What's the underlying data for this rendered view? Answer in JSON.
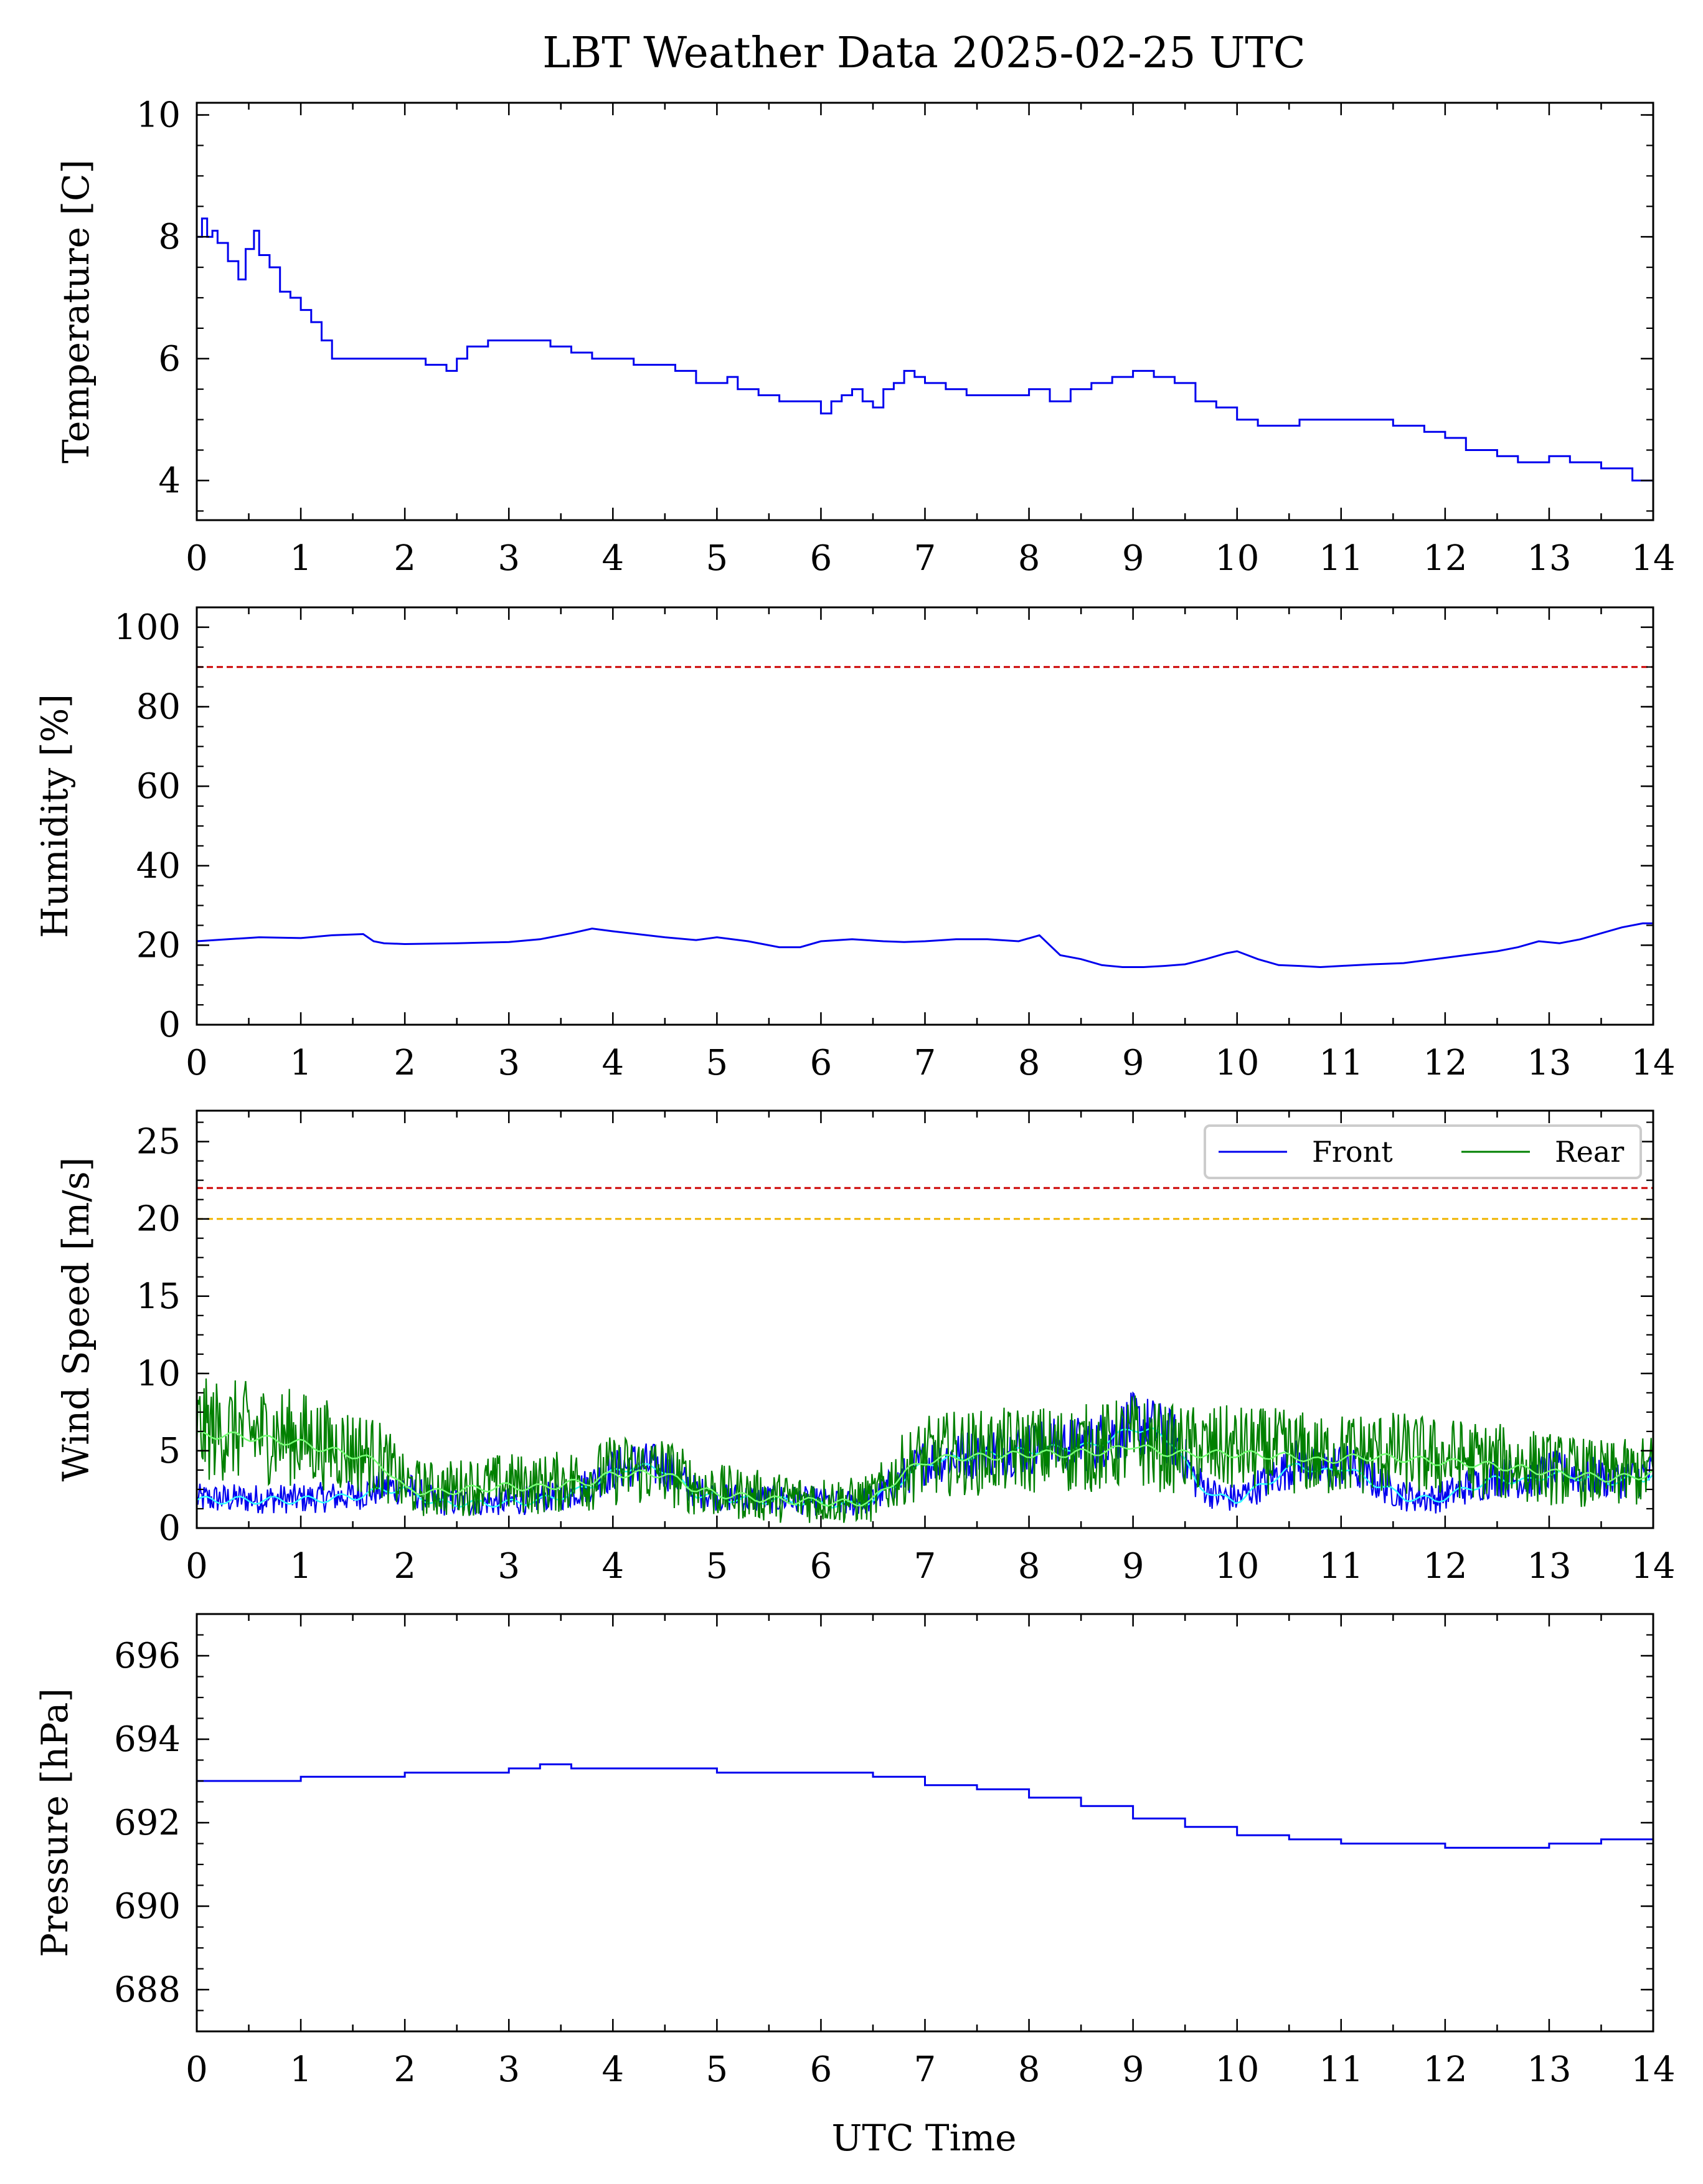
{
  "title": "LBT Weather Data 2025-02-25 UTC",
  "xlabel": "UTC Time",
  "colors": {
    "series_blue": "#0000ee",
    "series_green": "#008000",
    "smooth_front": "#33ffff",
    "smooth_rear": "#77ff77",
    "threshold_red": "#cc0000",
    "threshold_orange": "#f0b400"
  },
  "chart_data": [
    {
      "type": "line",
      "ylabel": "Temperature [C]",
      "xlim": [
        0,
        14
      ],
      "ylim": [
        3.35,
        10.2
      ],
      "yticks": [
        4,
        6,
        8,
        10
      ],
      "xticks": [
        0,
        1,
        2,
        3,
        4,
        5,
        6,
        7,
        8,
        9,
        10,
        11,
        12,
        13,
        14
      ],
      "step": true,
      "series": [
        {
          "color": "#0000ee",
          "x": [
            0,
            0.05,
            0.1,
            0.15,
            0.2,
            0.3,
            0.4,
            0.47,
            0.55,
            0.6,
            0.7,
            0.8,
            0.9,
            1.0,
            1.1,
            1.2,
            1.3,
            1.4,
            1.5,
            1.6,
            1.8,
            2.0,
            2.2,
            2.4,
            2.5,
            2.6,
            2.8,
            3.0,
            3.2,
            3.4,
            3.6,
            3.8,
            4.0,
            4.2,
            4.4,
            4.6,
            4.8,
            5.0,
            5.1,
            5.2,
            5.4,
            5.6,
            5.8,
            6.0,
            6.1,
            6.2,
            6.3,
            6.4,
            6.5,
            6.6,
            6.7,
            6.8,
            6.9,
            7.0,
            7.2,
            7.4,
            7.6,
            7.8,
            8.0,
            8.2,
            8.4,
            8.6,
            8.8,
            9.0,
            9.2,
            9.4,
            9.6,
            9.8,
            10.0,
            10.2,
            10.4,
            10.6,
            10.8,
            11.0,
            11.2,
            11.5,
            11.8,
            12.0,
            12.2,
            12.5,
            12.7,
            12.9,
            13.0,
            13.2,
            13.5,
            13.8,
            14.0
          ],
          "y": [
            8.0,
            8.3,
            8.0,
            8.1,
            7.9,
            7.6,
            7.3,
            7.8,
            8.1,
            7.7,
            7.5,
            7.1,
            7.0,
            6.8,
            6.6,
            6.3,
            6.0,
            6.0,
            6.0,
            6.0,
            6.0,
            6.0,
            5.9,
            5.8,
            6.0,
            6.2,
            6.3,
            6.3,
            6.3,
            6.2,
            6.1,
            6.0,
            6.0,
            5.9,
            5.9,
            5.8,
            5.6,
            5.6,
            5.7,
            5.5,
            5.4,
            5.3,
            5.3,
            5.1,
            5.3,
            5.4,
            5.5,
            5.3,
            5.2,
            5.5,
            5.6,
            5.8,
            5.7,
            5.6,
            5.5,
            5.4,
            5.4,
            5.4,
            5.5,
            5.3,
            5.5,
            5.6,
            5.7,
            5.8,
            5.7,
            5.6,
            5.3,
            5.2,
            5.0,
            4.9,
            4.9,
            5.0,
            5.0,
            5.0,
            5.0,
            4.9,
            4.8,
            4.7,
            4.5,
            4.4,
            4.3,
            4.3,
            4.4,
            4.3,
            4.2,
            4.0,
            4.0
          ]
        }
      ]
    },
    {
      "type": "line",
      "ylabel": "Humidity [%]",
      "xlim": [
        0,
        14
      ],
      "ylim": [
        0,
        105
      ],
      "yticks": [
        0,
        20,
        40,
        60,
        80,
        100
      ],
      "xticks": [
        0,
        1,
        2,
        3,
        4,
        5,
        6,
        7,
        8,
        9,
        10,
        11,
        12,
        13,
        14
      ],
      "hlines": [
        {
          "y": 90,
          "color": "#cc0000"
        }
      ],
      "series": [
        {
          "color": "#0000ee",
          "x": [
            0,
            0.3,
            0.6,
            1.0,
            1.3,
            1.6,
            1.7,
            1.8,
            2.0,
            2.5,
            3.0,
            3.3,
            3.6,
            3.8,
            4.0,
            4.5,
            4.8,
            5.0,
            5.3,
            5.6,
            5.8,
            6.0,
            6.3,
            6.6,
            6.8,
            7.0,
            7.3,
            7.6,
            7.9,
            8.1,
            8.2,
            8.3,
            8.5,
            8.7,
            8.9,
            9.1,
            9.3,
            9.5,
            9.7,
            9.9,
            10.0,
            10.2,
            10.4,
            10.6,
            10.8,
            11.0,
            11.3,
            11.6,
            11.9,
            12.2,
            12.5,
            12.7,
            12.9,
            13.1,
            13.3,
            13.5,
            13.7,
            13.9,
            14.0
          ],
          "y": [
            21,
            21.5,
            22,
            21.8,
            22.5,
            22.8,
            21,
            20.5,
            20.3,
            20.5,
            20.8,
            21.5,
            23,
            24.2,
            23.5,
            22,
            21.3,
            22,
            21,
            19.5,
            19.5,
            21,
            21.5,
            21,
            20.8,
            21,
            21.5,
            21.5,
            21,
            22.5,
            20,
            17.5,
            16.5,
            15,
            14.5,
            14.5,
            14.8,
            15.2,
            16.5,
            18,
            18.5,
            16.5,
            15,
            14.8,
            14.5,
            14.8,
            15.2,
            15.5,
            16.5,
            17.5,
            18.5,
            19.5,
            21,
            20.5,
            21.5,
            23,
            24.5,
            25.5,
            25.5
          ]
        }
      ]
    },
    {
      "type": "line",
      "ylabel": "Wind Speed [m/s]",
      "xlim": [
        0,
        14
      ],
      "ylim": [
        0,
        27
      ],
      "yticks": [
        0,
        5,
        10,
        15,
        20,
        25
      ],
      "xticks": [
        0,
        1,
        2,
        3,
        4,
        5,
        6,
        7,
        8,
        9,
        10,
        11,
        12,
        13,
        14
      ],
      "hlines": [
        {
          "y": 22,
          "color": "#cc0000"
        },
        {
          "y": 20,
          "color": "#f0b400"
        }
      ],
      "legend": {
        "placement": "top-right",
        "entries": [
          "Front",
          "Rear"
        ]
      },
      "series": [
        {
          "name": "Front",
          "color": "#0000ee",
          "smooth_color": "#33ffff",
          "x": [
            0,
            0.5,
            1.0,
            1.5,
            1.8,
            2.0,
            2.3,
            2.6,
            3.0,
            3.3,
            3.6,
            3.8,
            4.0,
            4.2,
            4.5,
            4.8,
            5.0,
            5.3,
            5.6,
            6.0,
            6.3,
            6.5,
            6.8,
            7.0,
            7.3,
            7.6,
            8.0,
            8.3,
            8.6,
            8.8,
            9.0,
            9.2,
            9.4,
            9.6,
            9.8,
            10.0,
            10.3,
            10.6,
            10.8,
            11.0,
            11.3,
            11.6,
            11.9,
            12.2,
            12.5,
            12.8,
            13.0,
            13.3,
            13.6,
            13.9,
            14.0
          ],
          "y": [
            1.8,
            1.8,
            1.8,
            2.0,
            2.5,
            2.5,
            1.6,
            1.6,
            1.6,
            1.8,
            2.2,
            2.8,
            3.6,
            4.0,
            3.8,
            2.2,
            2.0,
            1.8,
            1.8,
            1.6,
            1.5,
            1.8,
            3.2,
            4.2,
            4.5,
            4.8,
            5.0,
            5.2,
            5.3,
            5.8,
            6.5,
            6.2,
            5.5,
            3.0,
            2.0,
            1.8,
            3.0,
            4.2,
            3.5,
            4.0,
            3.0,
            2.0,
            1.8,
            2.5,
            3.2,
            3.0,
            3.5,
            3.3,
            3.0,
            3.2,
            3.5
          ],
          "amplitude": 1.5
        },
        {
          "name": "Rear",
          "color": "#008000",
          "smooth_color": "#77ff77",
          "x": [
            0,
            0.3,
            0.6,
            1.0,
            1.3,
            1.6,
            1.8,
            2.0,
            2.3,
            2.6,
            3.0,
            3.3,
            3.6,
            3.8,
            4.0,
            4.2,
            4.5,
            4.8,
            5.0,
            5.3,
            5.6,
            6.0,
            6.3,
            6.5,
            6.8,
            7.0,
            7.3,
            7.6,
            8.0,
            8.3,
            8.6,
            8.8,
            9.0,
            9.2,
            9.4,
            9.6,
            9.8,
            10.0,
            10.3,
            10.6,
            10.8,
            11.0,
            11.3,
            11.6,
            11.9,
            12.2,
            12.5,
            12.8,
            13.0,
            13.3,
            13.6,
            13.9,
            14.0
          ],
          "y": [
            6.0,
            6.0,
            5.8,
            5.5,
            5.0,
            4.6,
            4.0,
            2.5,
            2.3,
            2.5,
            2.7,
            2.6,
            2.9,
            3.0,
            3.5,
            3.5,
            3.5,
            2.5,
            2.2,
            2.0,
            1.8,
            1.7,
            1.6,
            1.8,
            3.6,
            4.3,
            4.6,
            4.6,
            4.8,
            4.8,
            4.9,
            5.0,
            5.4,
            5.0,
            4.8,
            4.8,
            4.8,
            4.8,
            4.7,
            4.6,
            4.3,
            4.5,
            4.6,
            4.5,
            4.3,
            4.2,
            4.0,
            3.8,
            3.6,
            3.4,
            3.2,
            3.4,
            3.6
          ],
          "amplitude": 2.5
        }
      ]
    },
    {
      "type": "line",
      "ylabel": "Pressure [hPa]",
      "xlim": [
        0,
        14
      ],
      "ylim": [
        687,
        697
      ],
      "yticks": [
        688,
        690,
        692,
        694,
        696
      ],
      "xticks": [
        0,
        1,
        2,
        3,
        4,
        5,
        6,
        7,
        8,
        9,
        10,
        11,
        12,
        13,
        14
      ],
      "step": true,
      "series": [
        {
          "color": "#0000ee",
          "x": [
            0,
            0.5,
            1.0,
            1.5,
            2.0,
            2.5,
            3.0,
            3.3,
            3.6,
            4.0,
            4.5,
            5.0,
            5.5,
            6.0,
            6.5,
            7.0,
            7.5,
            8.0,
            8.5,
            9.0,
            9.5,
            10.0,
            10.5,
            11.0,
            11.5,
            12.0,
            12.5,
            13.0,
            13.5,
            14.0
          ],
          "y": [
            693.0,
            693.0,
            693.1,
            693.1,
            693.2,
            693.2,
            693.3,
            693.4,
            693.3,
            693.3,
            693.3,
            693.2,
            693.2,
            693.2,
            693.1,
            692.9,
            692.8,
            692.6,
            692.4,
            692.1,
            691.9,
            691.7,
            691.6,
            691.5,
            691.5,
            691.4,
            691.4,
            691.5,
            691.6,
            691.6
          ]
        }
      ]
    }
  ]
}
